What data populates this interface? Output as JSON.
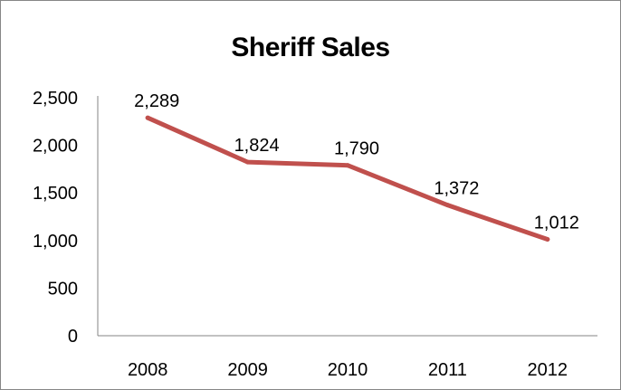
{
  "chart_data": {
    "type": "line",
    "title": "Sheriff Sales",
    "xlabel": "",
    "ylabel": "",
    "categories": [
      "2008",
      "2009",
      "2010",
      "2011",
      "2012"
    ],
    "series": [
      {
        "values": [
          2289,
          1824,
          1790,
          1372,
          1012
        ],
        "data_labels": [
          "2,289",
          "1,824",
          "1,790",
          "1,372",
          "1,012"
        ],
        "color": "#C0504D"
      }
    ],
    "ylim": [
      0,
      2500
    ],
    "y_ticks": [
      0,
      500,
      1000,
      1500,
      2000,
      2500
    ],
    "y_tick_labels": [
      "0",
      "500",
      "1,000",
      "1,500",
      "2,000",
      "2,500"
    ],
    "grid": false,
    "legend": "none",
    "axis_color": "#868686"
  }
}
